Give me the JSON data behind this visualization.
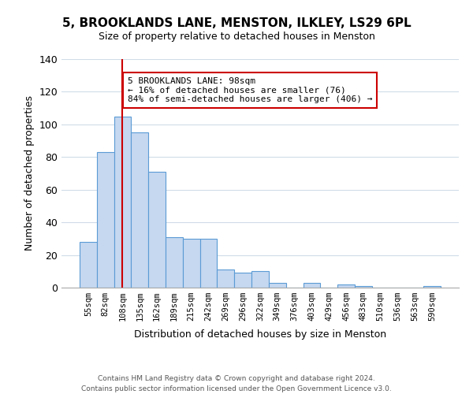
{
  "title": "5, BROOKLANDS LANE, MENSTON, ILKLEY, LS29 6PL",
  "subtitle": "Size of property relative to detached houses in Menston",
  "xlabel": "Distribution of detached houses by size in Menston",
  "ylabel": "Number of detached properties",
  "bar_labels": [
    "55sqm",
    "82sqm",
    "108sqm",
    "135sqm",
    "162sqm",
    "189sqm",
    "215sqm",
    "242sqm",
    "269sqm",
    "296sqm",
    "322sqm",
    "349sqm",
    "376sqm",
    "403sqm",
    "429sqm",
    "456sqm",
    "483sqm",
    "510sqm",
    "536sqm",
    "563sqm",
    "590sqm"
  ],
  "bar_values": [
    28,
    83,
    105,
    95,
    71,
    31,
    30,
    30,
    11,
    9,
    10,
    3,
    0,
    3,
    0,
    2,
    1,
    0,
    0,
    0,
    1
  ],
  "bar_color": "#c5d8f0",
  "bar_edge_color": "#5b9bd5",
  "ylim": [
    0,
    140
  ],
  "yticks": [
    0,
    20,
    40,
    60,
    80,
    100,
    120,
    140
  ],
  "vline_x_index": 2,
  "vline_color": "#cc0000",
  "annotation_text": "5 BROOKLANDS LANE: 98sqm\n← 16% of detached houses are smaller (76)\n84% of semi-detached houses are larger (406) →",
  "annotation_box_color": "#ffffff",
  "annotation_box_edge": "#cc0000",
  "footer_text": "Contains HM Land Registry data © Crown copyright and database right 2024.\nContains public sector information licensed under the Open Government Licence v3.0.",
  "background_color": "#ffffff",
  "grid_color": "#d0dce8"
}
